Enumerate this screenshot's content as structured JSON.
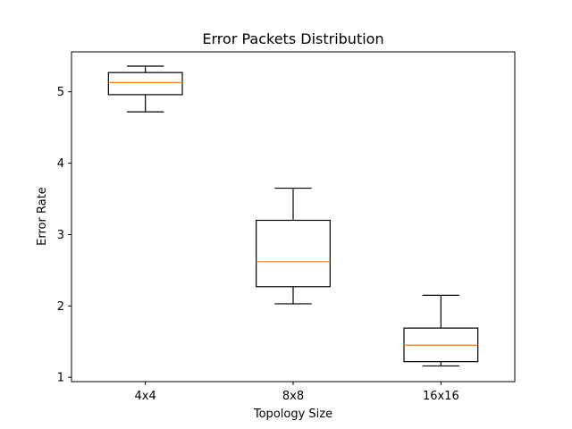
{
  "chart_data": {
    "type": "boxplot",
    "title": "Error Packets Distribution",
    "xlabel": "Topology Size",
    "ylabel": "Error Rate",
    "categories": [
      "4x4",
      "8x8",
      "16x16"
    ],
    "boxes": [
      {
        "whislo": 4.72,
        "q1": 4.96,
        "med": 5.13,
        "q3": 5.27,
        "whishi": 5.36
      },
      {
        "whislo": 2.03,
        "q1": 2.27,
        "med": 2.62,
        "q3": 3.2,
        "whishi": 3.65
      },
      {
        "whislo": 1.16,
        "q1": 1.22,
        "med": 1.45,
        "q3": 1.69,
        "whishi": 2.15
      }
    ],
    "ylim": [
      0.94,
      5.56
    ],
    "yticks": [
      1,
      2,
      3,
      4,
      5
    ],
    "grid": false,
    "colors": {
      "box": "#000000",
      "median": "#ff7f0e"
    }
  }
}
